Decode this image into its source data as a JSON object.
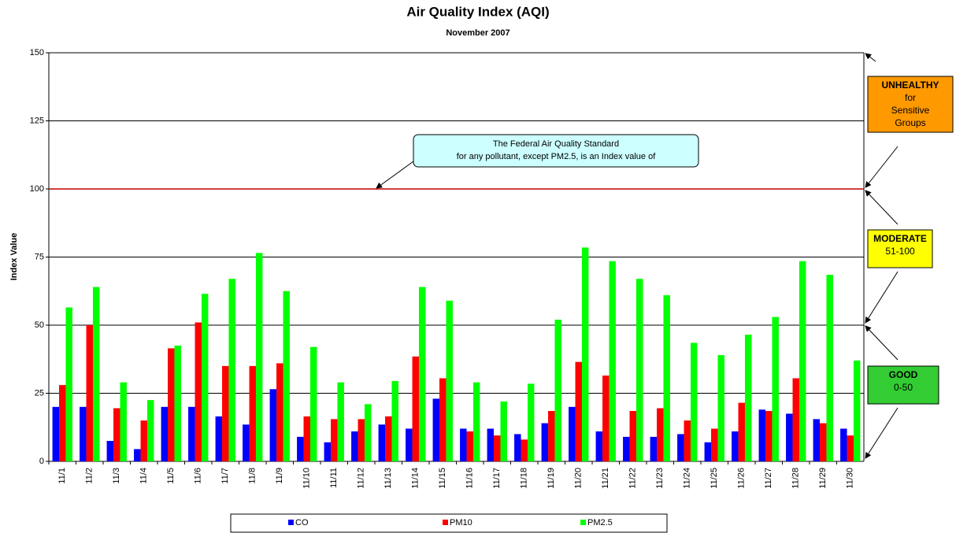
{
  "chart_data": {
    "type": "bar",
    "title": "Air Quality Index  (AQI)",
    "subtitle": "November 2007",
    "y_label": "Index Value",
    "categories": [
      "11/1",
      "11/2",
      "11/3",
      "11/4",
      "11/5",
      "11/6",
      "11/7",
      "11/8",
      "11/9",
      "11/10",
      "11/11",
      "11/12",
      "11/13",
      "11/14",
      "11/15",
      "11/16",
      "11/17",
      "11/18",
      "11/19",
      "11/20",
      "11/21",
      "11/22",
      "11/23",
      "11/24",
      "11/25",
      "11/26",
      "11/27",
      "11/28",
      "11/29",
      "11/30"
    ],
    "series": [
      {
        "name": "CO",
        "color": "#0000ff",
        "values": [
          20,
          20,
          7.5,
          4.5,
          20,
          20,
          16.5,
          13.5,
          26.5,
          9,
          7,
          11,
          13.5,
          12,
          23,
          12,
          12,
          10,
          14,
          20,
          11,
          9,
          9,
          10,
          7,
          11,
          19,
          17.5,
          15.5,
          12
        ]
      },
      {
        "name": "PM10",
        "color": "#ff0000",
        "values": [
          28,
          50,
          19.5,
          15,
          41.5,
          51,
          35,
          35,
          36,
          16.5,
          15.5,
          15.5,
          16.5,
          38.5,
          30.5,
          11,
          9.5,
          8,
          18.5,
          36.5,
          31.5,
          18.5,
          19.5,
          15,
          12,
          21.5,
          18.5,
          30.5,
          14,
          9.5
        ]
      },
      {
        "name": "PM2.5",
        "color": "#00ff00",
        "values": [
          56.5,
          64,
          29,
          22.5,
          42.5,
          61.5,
          67,
          76.5,
          62.5,
          42,
          29,
          21,
          29.5,
          64,
          59,
          29,
          22,
          28.5,
          52,
          78.5,
          73.5,
          67,
          61,
          43.5,
          39,
          46.5,
          53,
          73.5,
          68.5,
          37
        ]
      }
    ],
    "ylim": [
      0,
      150
    ],
    "yticks": [
      0,
      25,
      50,
      75,
      100,
      125,
      150
    ],
    "grid": true,
    "reference_line": {
      "value": 100,
      "color": "#c00000"
    },
    "callout": [
      "The Federal Air Quality Standard",
      "for any pollutant, except PM2.5, is an Index value of"
    ],
    "zones": [
      {
        "lines": [
          "UNHEALTHY",
          "for",
          "Sensitive",
          "Groups"
        ],
        "color": "#ff9900"
      },
      {
        "lines": [
          "MODERATE",
          "51-100"
        ],
        "color": "#ffff00"
      },
      {
        "lines": [
          "GOOD",
          "0-50"
        ],
        "color": "#33cc33"
      }
    ],
    "legend": "bottom"
  }
}
